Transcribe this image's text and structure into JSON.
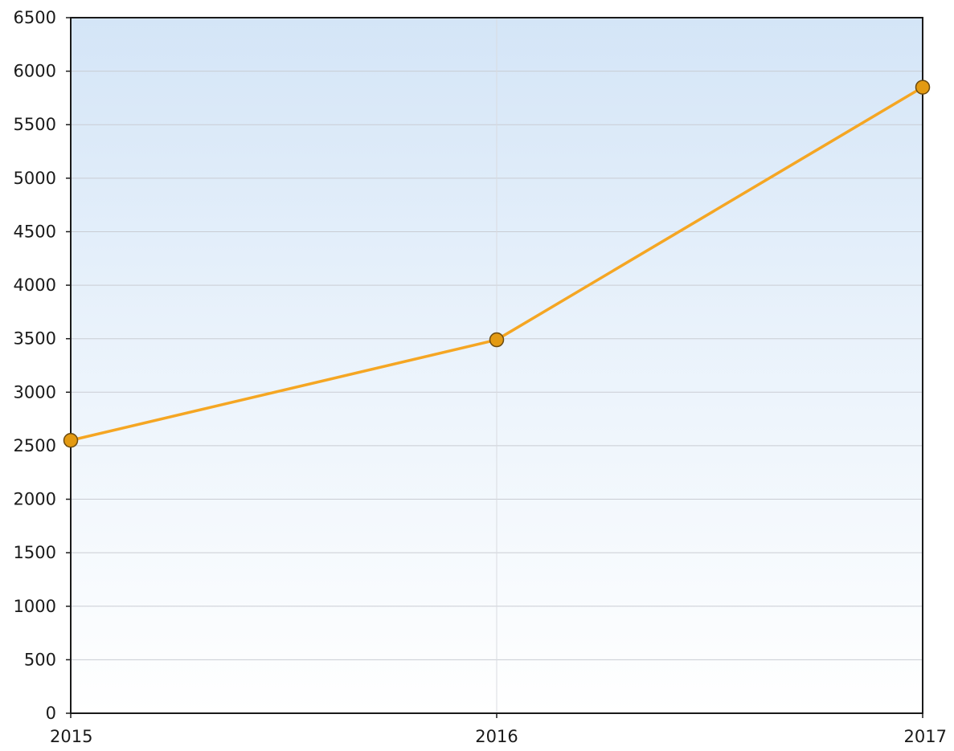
{
  "chart_data": {
    "type": "line",
    "title": "",
    "xlabel": "",
    "ylabel": "",
    "categories": [
      "2015",
      "2016",
      "2017"
    ],
    "series": [
      {
        "values": [
          2550,
          3490,
          5850
        ]
      }
    ],
    "ylim": [
      0,
      6500
    ],
    "yticks": [
      0,
      500,
      1000,
      1500,
      2000,
      2500,
      3000,
      3500,
      4000,
      4500,
      5000,
      5500,
      6000,
      6500
    ],
    "ytick_labels": [
      "0",
      "500",
      "1000",
      "1500",
      "2000",
      "2500",
      "3000",
      "3500",
      "4000",
      "4500",
      "5000",
      "5500",
      "6000",
      "6500"
    ],
    "grid": true,
    "legend": "none",
    "colors": {
      "line": "#f5a623",
      "marker_fill": "#e39a12",
      "marker_stroke": "#6b4a10",
      "axis": "#1a1a1a",
      "grid": "#c9ccd3",
      "background_top": "#d9e9f8",
      "background_bottom": "#ffffff"
    }
  }
}
